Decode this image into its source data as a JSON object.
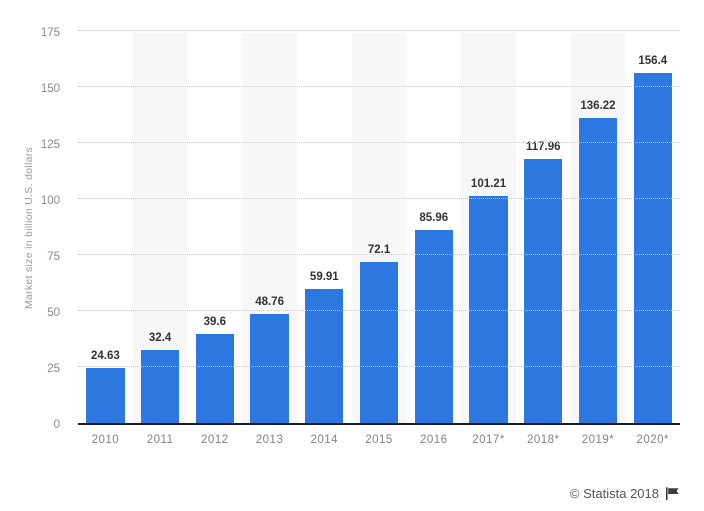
{
  "chart_data": {
    "type": "bar",
    "title": "",
    "ylabel": "Market size in billion U.S. dollars",
    "xlabel": "",
    "categories": [
      "2010",
      "2011",
      "2012",
      "2013",
      "2014",
      "2015",
      "2016",
      "2017*",
      "2018*",
      "2019*",
      "2020*"
    ],
    "values": [
      24.63,
      32.4,
      39.6,
      48.76,
      59.91,
      72.1,
      85.96,
      101.21,
      117.96,
      136.22,
      156.4
    ],
    "value_labels": [
      "24.63",
      "32.4",
      "39.6",
      "48.76",
      "59.91",
      "72.1",
      "85.96",
      "101.21",
      "117.96",
      "136.22",
      "156.4"
    ],
    "ylim": [
      0,
      175
    ],
    "yticks": [
      0,
      25,
      50,
      75,
      100,
      125,
      150,
      175
    ],
    "grid": "horizontal-dotted",
    "legend_position": "none",
    "bar_color": "#2d77e0",
    "band_color": "#f7f7f7",
    "banded_columns": "odd"
  },
  "footer": {
    "credit": "© Statista 2018",
    "flag_icon": "flag-icon",
    "flag_color": "#3c3c3c"
  }
}
